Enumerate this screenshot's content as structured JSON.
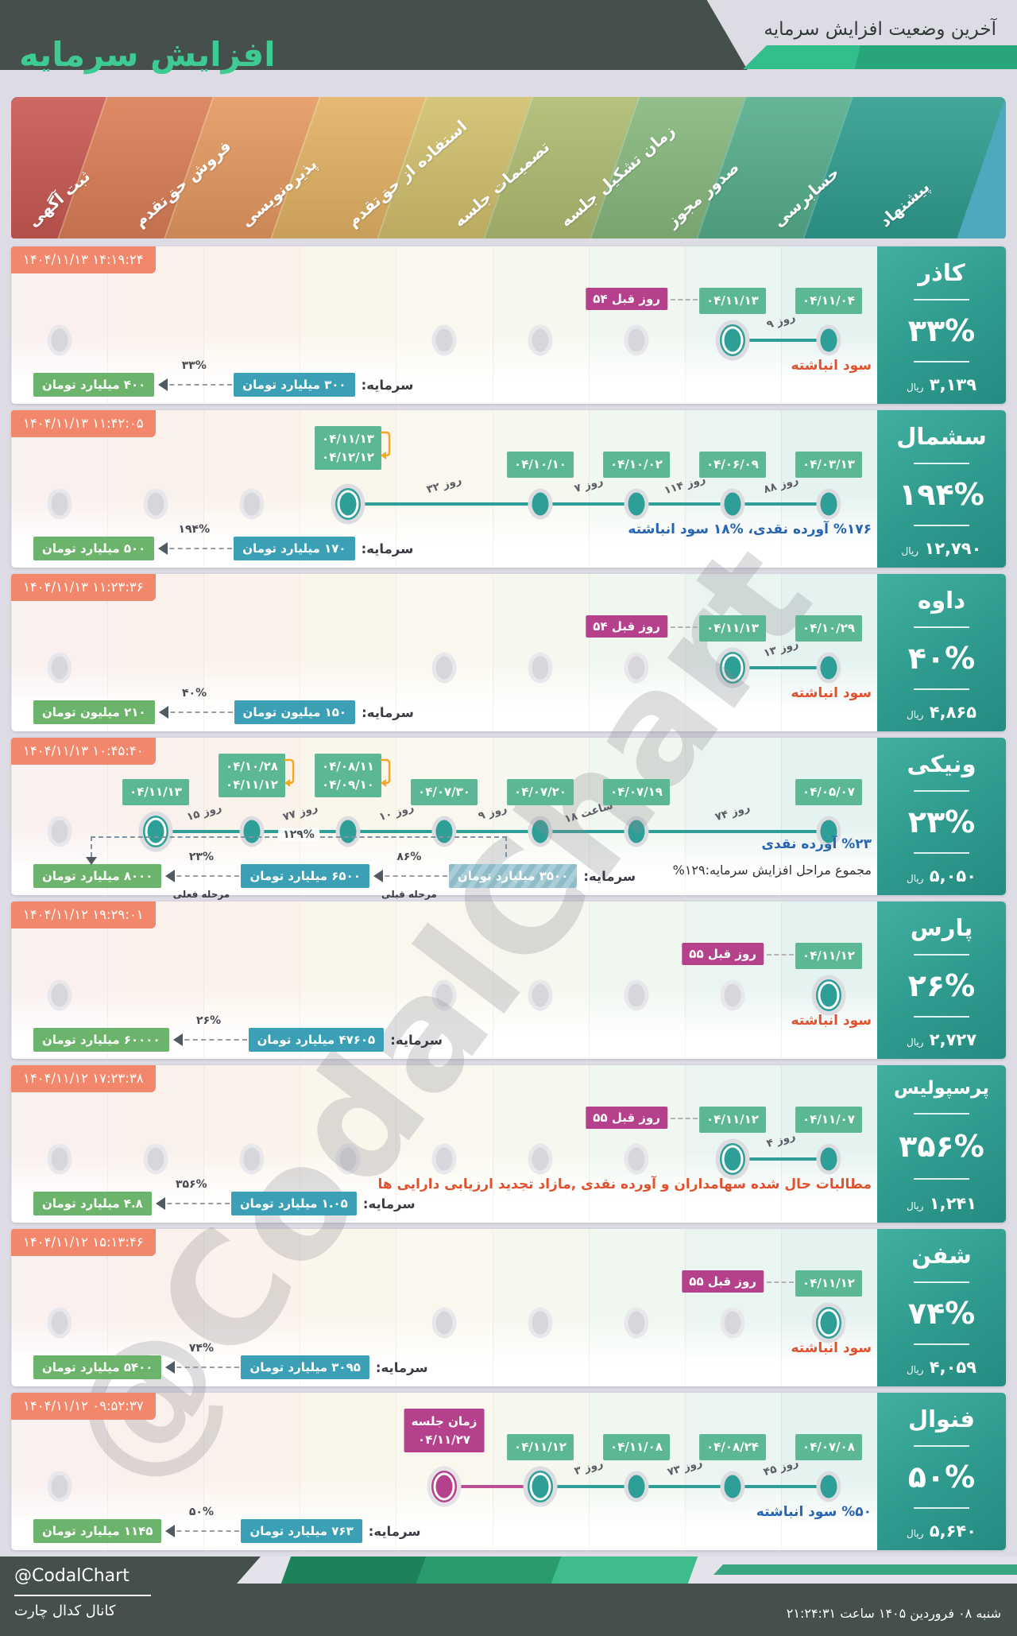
{
  "header": {
    "title": "افزایش سرمایه",
    "subtitle": "آخرین وضعیت افزایش سرمایه",
    "title_color": "#3ECB93",
    "band_color": "#454F4B",
    "accent_greens": [
      "#33BE8C",
      "#27A57B"
    ]
  },
  "watermark": {
    "text": "@CodalChart"
  },
  "stages": [
    {
      "label": "ثبت آگهی",
      "color": "#C95952",
      "tint": "#FAF0EF"
    },
    {
      "label": "فروش حق‌تقدم",
      "color": "#DC7E57",
      "tint": "#FAF1EC"
    },
    {
      "label": "پذیره‌نویسی",
      "color": "#E59960",
      "tint": "#FBF3EB"
    },
    {
      "label": "استفاده از حق‌تقدم",
      "color": "#E3B365",
      "tint": "#FBF6EC"
    },
    {
      "label": "تصمیمات جلسه",
      "color": "#D2C16D",
      "tint": "#FAF8EE"
    },
    {
      "label": "زمان تشکیل جلسه",
      "color": "#AFBD72",
      "tint": "#F6F8EF"
    },
    {
      "label": "صدور مجوز",
      "color": "#88B97E",
      "tint": "#F0F7F0"
    },
    {
      "label": "حسابرسی",
      "color": "#55AE8C",
      "tint": "#EAF5F1"
    },
    {
      "label": "پیشنهاد",
      "color": "#2F9E90",
      "tint": "#E5F3F0"
    }
  ],
  "banner_edge_color": "#4FA9BE",
  "colors": {
    "node_teal": "#2D9F97",
    "node_magenta": "#B5418C",
    "date_badge": "#5CB794",
    "ago_badge": "#B5418C",
    "timestamp_badge": "#F2876B",
    "capital_current": "#3BA0B5",
    "capital_new": "#6CB46B",
    "note_red": "#E0512E",
    "note_blue": "#2764B1",
    "panel_teal": "#2E9A8D"
  },
  "companies": [
    {
      "name": "کاذر",
      "timestamp": "۱۴۰۴/۱۱/۱۳ ۱۴:۱۹:۲۴",
      "percent": "۳۳%",
      "price": "۳,۱۳۹",
      "price_unit": "ریال",
      "note": {
        "text": "سود انباشته",
        "type": "red"
      },
      "gray_cols": [
        0,
        4,
        5,
        6
      ],
      "nodes": [
        {
          "col": 8,
          "style": "done",
          "badge": [
            "۰۴/۱۱/۰۴"
          ]
        },
        {
          "col": 7,
          "style": "current",
          "badge": [
            "۰۴/۱۱/۱۳"
          ],
          "ago": "۵۴ روز قبل"
        }
      ],
      "segments": [
        {
          "from": 7,
          "to": 8,
          "label": "۹ روز"
        }
      ],
      "capital": {
        "label": "سرمایه:",
        "current": "۳۰۰ میلیارد تومان",
        "pct": "۳۳%",
        "target": "۴۰۰ میلیارد تومان"
      }
    },
    {
      "name": "سشمال",
      "timestamp": "۱۴۰۴/۱۱/۱۳ ۱۱:۴۲:۰۵",
      "percent": "۱۹۴%",
      "price": "۱۲,۷۹۰",
      "price_unit": "ریال",
      "note": {
        "text": "%۱۷۶ آورده نقدی، %۱۸ سود انباشته",
        "type": "blue"
      },
      "gray_cols": [
        0,
        1,
        2
      ],
      "nodes": [
        {
          "col": 8,
          "style": "done",
          "badge": [
            "۰۴/۰۳/۱۳"
          ]
        },
        {
          "col": 7,
          "style": "done",
          "badge": [
            "۰۴/۰۶/۰۹"
          ]
        },
        {
          "col": 6,
          "style": "done",
          "badge": [
            "۰۴/۱۰/۰۲"
          ]
        },
        {
          "col": 5,
          "style": "done",
          "badge": [
            "۰۴/۱۰/۱۰"
          ]
        },
        {
          "col": 3,
          "style": "current",
          "badge": [
            "۰۴/۱۱/۱۳",
            "۰۴/۱۲/۱۲"
          ],
          "bracket": true
        }
      ],
      "segments": [
        {
          "from": 3,
          "to": 5,
          "label": "۳۲ روز"
        },
        {
          "from": 5,
          "to": 6,
          "label": "۷ روز"
        },
        {
          "from": 6,
          "to": 7,
          "label": "۱۱۴ روز"
        },
        {
          "from": 7,
          "to": 8,
          "label": "۸۸ روز"
        }
      ],
      "capital": {
        "label": "سرمایه:",
        "current": "۱۷۰ میلیارد تومان",
        "pct": "۱۹۴%",
        "target": "۵۰۰ میلیارد تومان"
      }
    },
    {
      "name": "داوه",
      "timestamp": "۱۴۰۴/۱۱/۱۳ ۱۱:۲۳:۳۶",
      "percent": "۴۰%",
      "price": "۴,۸۶۵",
      "price_unit": "ریال",
      "note": {
        "text": "سود انباشته",
        "type": "red"
      },
      "gray_cols": [
        0,
        4,
        5,
        6
      ],
      "nodes": [
        {
          "col": 8,
          "style": "done",
          "badge": [
            "۰۴/۱۰/۲۹"
          ]
        },
        {
          "col": 7,
          "style": "current",
          "badge": [
            "۰۴/۱۱/۱۳"
          ],
          "ago": "۵۴ روز قبل"
        }
      ],
      "segments": [
        {
          "from": 7,
          "to": 8,
          "label": "۱۳ روز"
        }
      ],
      "capital": {
        "label": "سرمایه:",
        "current": "۱۵۰ میلیون تومان",
        "pct": "۴۰%",
        "target": "۲۱۰ میلیون تومان"
      }
    },
    {
      "name": "ونیکی",
      "timestamp": "۱۴۰۴/۱۱/۱۳ ۱۰:۴۵:۴۰",
      "percent": "۲۳%",
      "price": "۵,۰۵۰",
      "price_unit": "ریال",
      "note": {
        "text": "%۲۳ آورده نقدی",
        "type": "blue"
      },
      "note2": "مجموع مراحل افزایش سرمایه:۱۲۹%",
      "gray_cols": [
        0
      ],
      "nodes": [
        {
          "col": 8,
          "style": "done",
          "badge": [
            "۰۴/۰۵/۰۷"
          ]
        },
        {
          "col": 6,
          "style": "done",
          "badge": [
            "۰۴/۰۷/۱۹"
          ]
        },
        {
          "col": 5,
          "style": "done",
          "badge": [
            "۰۴/۰۷/۲۰"
          ]
        },
        {
          "col": 4,
          "style": "done",
          "badge": [
            "۰۴/۰۷/۳۰"
          ]
        },
        {
          "col": 3,
          "style": "done",
          "badge": [
            "۰۴/۰۸/۱۱",
            "۰۴/۰۹/۱۰"
          ],
          "bracket": true
        },
        {
          "col": 2,
          "style": "done",
          "badge": [
            "۰۴/۱۰/۲۸",
            "۰۴/۱۱/۱۲"
          ],
          "bracket": true
        },
        {
          "col": 1,
          "style": "current",
          "badge": [
            "۰۴/۱۱/۱۳"
          ]
        }
      ],
      "segments": [
        {
          "from": 1,
          "to": 2,
          "label": "۱۵ روز"
        },
        {
          "from": 2,
          "to": 3,
          "label": "۷۷ روز"
        },
        {
          "from": 3,
          "to": 4,
          "label": "۱۰ روز"
        },
        {
          "from": 4,
          "to": 5,
          "label": "۹ روز"
        },
        {
          "from": 5,
          "to": 6,
          "label": "۱۸ ساعت"
        },
        {
          "from": 6,
          "to": 8,
          "label": "۷۴ روز"
        }
      ],
      "capital_multi": {
        "label": "سرمایه:",
        "initial": "۳۵۰۰ میلیارد تومان",
        "pct1": "۸۶%",
        "sub1": "مرحله قبلی",
        "middle": "۶۵۰۰ میلیارد تومان",
        "pct2": "۲۳%",
        "sub2": "مرحله فعلی",
        "target": "۸۰۰۰ میلیارد تومان",
        "total_pct": "۱۲۹%"
      }
    },
    {
      "name": "پارس",
      "timestamp": "۱۴۰۴/۱۱/۱۲ ۱۹:۲۹:۰۱",
      "percent": "۲۶%",
      "price": "۲,۷۲۷",
      "price_unit": "ریال",
      "note": {
        "text": "سود انباشته",
        "type": "red"
      },
      "gray_cols": [
        0,
        4,
        5,
        6,
        7
      ],
      "nodes": [
        {
          "col": 8,
          "style": "current",
          "badge": [
            "۰۴/۱۱/۱۲"
          ],
          "ago": "۵۵ روز قبل"
        }
      ],
      "segments": [],
      "capital": {
        "label": "سرمایه:",
        "current": "۴۷۶۰۵ میلیارد تومان",
        "pct": "۲۶%",
        "target": "۶۰۰۰۰ میلیارد تومان"
      }
    },
    {
      "name": "پرسپولیس",
      "timestamp": "۱۴۰۴/۱۱/۱۲ ۱۷:۲۳:۳۸",
      "percent": "۳۵۶%",
      "price": "۱,۲۴۱",
      "price_unit": "ریال",
      "note": {
        "text": "مطالبات حال شده سهامداران و آورده نقدی ,مازاد تجدید ارزیابی دارایی ها",
        "type": "red"
      },
      "gray_cols": [
        0,
        1,
        2,
        3,
        4,
        5,
        6
      ],
      "nodes": [
        {
          "col": 8,
          "style": "done",
          "badge": [
            "۰۴/۱۱/۰۷"
          ]
        },
        {
          "col": 7,
          "style": "current",
          "badge": [
            "۰۴/۱۱/۱۲"
          ],
          "ago": "۵۵ روز قبل"
        }
      ],
      "segments": [
        {
          "from": 7,
          "to": 8,
          "label": "۴ روز"
        }
      ],
      "capital": {
        "label": "سرمایه:",
        "current": "۱.۰۵ میلیارد تومان",
        "pct": "۳۵۶%",
        "target": "۴.۸ میلیارد تومان"
      }
    },
    {
      "name": "شفن",
      "timestamp": "۱۴۰۴/۱۱/۱۲ ۱۵:۱۳:۴۶",
      "percent": "۷۴%",
      "price": "۴,۰۵۹",
      "price_unit": "ریال",
      "note": {
        "text": "سود انباشته",
        "type": "red"
      },
      "gray_cols": [
        0,
        4,
        5,
        6,
        7
      ],
      "nodes": [
        {
          "col": 8,
          "style": "current",
          "badge": [
            "۰۴/۱۱/۱۲"
          ],
          "ago": "۵۵ روز قبل"
        }
      ],
      "segments": [],
      "capital": {
        "label": "سرمایه:",
        "current": "۳۰۹۵ میلیارد تومان",
        "pct": "۷۴%",
        "target": "۵۴۰۰ میلیارد تومان"
      }
    },
    {
      "name": "فنوال",
      "timestamp": "۱۴۰۴/۱۱/۱۲ ۰۹:۵۲:۳۷",
      "percent": "۵۰%",
      "price": "۵,۶۴۰",
      "price_unit": "ریال",
      "note": {
        "text": "%۵۰ سود انباشته",
        "type": "blue"
      },
      "gray_cols": [
        0
      ],
      "nodes": [
        {
          "col": 8,
          "style": "done",
          "badge": [
            "۰۴/۰۷/۰۸"
          ]
        },
        {
          "col": 7,
          "style": "done",
          "badge": [
            "۰۴/۰۸/۲۴"
          ]
        },
        {
          "col": 6,
          "style": "done",
          "badge": [
            "۰۴/۱۱/۰۸"
          ]
        },
        {
          "col": 5,
          "style": "current",
          "badge": [
            "۰۴/۱۱/۱۲"
          ]
        },
        {
          "col": 4,
          "style": "future",
          "badge": [
            "زمان جلسه",
            "۰۴/۱۱/۲۷"
          ]
        }
      ],
      "segments": [
        {
          "from": 4,
          "to": 5,
          "label": "",
          "color": "magenta"
        },
        {
          "from": 5,
          "to": 6,
          "label": "۳ روز"
        },
        {
          "from": 6,
          "to": 7,
          "label": "۷۳ روز"
        },
        {
          "from": 7,
          "to": 8,
          "label": "۴۵ روز"
        }
      ],
      "capital": {
        "label": "سرمایه:",
        "current": "۷۶۳ میلیارد تومان",
        "pct": "۵۰%",
        "target": "۱۱۴۵ میلیارد تومان"
      }
    }
  ],
  "footer": {
    "handle": "@CodalChart",
    "channel": "کانال کدال چارت",
    "datetime": "شنبه ۰۸ فروردین ۱۴۰۵ ساعت ۲۱:۲۴:۳۱"
  }
}
